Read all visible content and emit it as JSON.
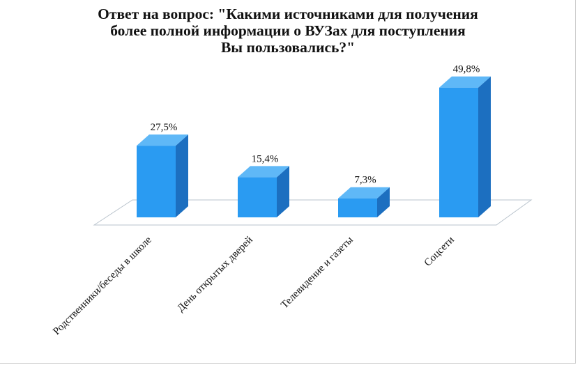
{
  "chart_data": {
    "type": "bar",
    "title_lines": [
      "Ответ на вопрос: \"Какими источниками для получения",
      "более полной информации о ВУЗах для поступления",
      "Вы пользовались?\""
    ],
    "categories": [
      "Родственники/беседы в школе",
      "День открытых дверей",
      "Телевидение и газеты",
      "Соцсети"
    ],
    "values": [
      27.5,
      15.4,
      7.3,
      49.8
    ],
    "value_labels": [
      "27,5%",
      "15,4%",
      "7,3%",
      "49,8%"
    ],
    "unit": "%",
    "ylim": [
      0,
      55
    ],
    "grid": false,
    "legend": "none",
    "style": "3d-column",
    "colors": {
      "bar_front": "#2a9bf2",
      "bar_side": "#1c6fc0",
      "bar_top": "#5fb8f7",
      "floor": "#ffffff",
      "floor_edge": "#b9c3cc"
    }
  }
}
